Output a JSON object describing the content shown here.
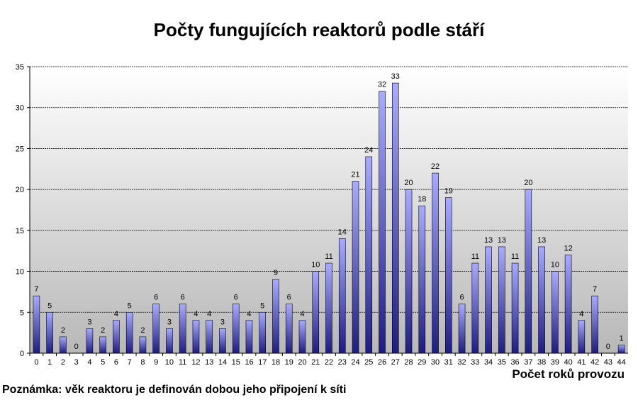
{
  "chart_data": {
    "type": "bar",
    "title": "Počty fungujících reaktorů podle stáří",
    "xlabel": "Počet roků provozu",
    "ylabel": "",
    "note": "Poznámka: věk reaktoru je definován dobou jeho připojení k síti",
    "categories": [
      "0",
      "1",
      "2",
      "3",
      "4",
      "5",
      "6",
      "7",
      "8",
      "9",
      "10",
      "11",
      "12",
      "13",
      "14",
      "15",
      "16",
      "17",
      "18",
      "19",
      "20",
      "21",
      "22",
      "23",
      "24",
      "25",
      "26",
      "27",
      "28",
      "29",
      "30",
      "31",
      "32",
      "33",
      "34",
      "35",
      "36",
      "37",
      "38",
      "39",
      "40",
      "41",
      "42",
      "43",
      "44"
    ],
    "values": [
      7,
      5,
      2,
      0,
      3,
      2,
      4,
      5,
      2,
      6,
      3,
      6,
      4,
      4,
      3,
      6,
      4,
      5,
      9,
      6,
      4,
      10,
      11,
      14,
      21,
      24,
      32,
      33,
      20,
      18,
      22,
      19,
      6,
      11,
      13,
      13,
      11,
      20,
      13,
      10,
      12,
      4,
      7,
      0,
      1
    ],
    "ylim": [
      0,
      35
    ],
    "yticks": [
      0,
      5,
      10,
      15,
      20,
      25,
      30,
      35
    ],
    "grid": true,
    "legend": "none",
    "colors": {
      "bar_top": "#a9abff",
      "bar_bottom": "#1e1c82",
      "bar_stroke": "#000000",
      "gridline": "#000000",
      "plot_bg_top": "#ffffff",
      "plot_bg_bottom": "#b8b8b8"
    }
  }
}
